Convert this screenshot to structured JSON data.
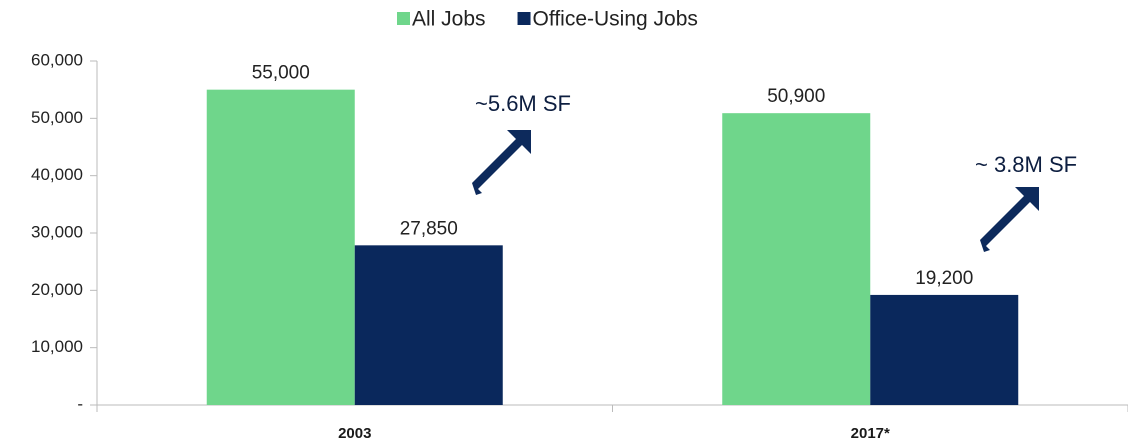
{
  "chart_data": {
    "type": "bar",
    "categories": [
      "2003",
      "2017*"
    ],
    "series": [
      {
        "name": "All Jobs",
        "color": "#6fd68b",
        "values": [
          55000,
          50900
        ],
        "value_labels": [
          "55,000",
          "50,900"
        ]
      },
      {
        "name": "Office-Using Jobs",
        "color": "#0a285c",
        "values": [
          27850,
          19200
        ],
        "value_labels": [
          "27,850",
          "19,200"
        ]
      }
    ],
    "ylim": [
      0,
      60000
    ],
    "yticks": [
      {
        "value": 0,
        "label": "-"
      },
      {
        "value": 10000,
        "label": "10,000"
      },
      {
        "value": 20000,
        "label": "20,000"
      },
      {
        "value": 30000,
        "label": "30,000"
      },
      {
        "value": 40000,
        "label": "40,000"
      },
      {
        "value": 50000,
        "label": "50,000"
      },
      {
        "value": 60000,
        "label": "60,000"
      }
    ],
    "annotations": [
      "~5.6M SF",
      "~ 3.8M SF"
    ],
    "legend": "top"
  }
}
